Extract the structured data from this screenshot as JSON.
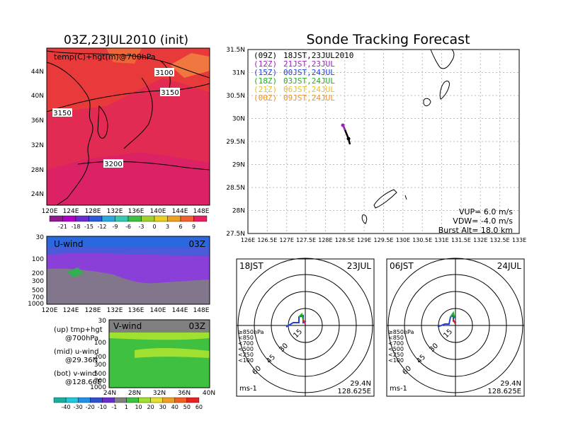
{
  "left_map": {
    "title": "03Z,23JUL2010 (init)",
    "label": "temp(C)+hgt(m)@700hPa",
    "contour_labels": [
      "3100",
      "3150",
      "3150",
      "3200"
    ],
    "lat_ticks": [
      "44N",
      "40N",
      "36N",
      "32N",
      "28N",
      "24N"
    ],
    "lon_ticks": [
      "120E",
      "124E",
      "128E",
      "132E",
      "136E",
      "140E",
      "144E",
      "148E"
    ],
    "colorbar": {
      "labels": [
        "-21",
        "-18",
        "-15",
        "-12",
        "-9",
        "-6",
        "-3",
        "0",
        "3",
        "6",
        "9"
      ],
      "colors": [
        "#8c1a8c",
        "#b000c8",
        "#6a2cd0",
        "#2a5ad8",
        "#2aa8e0",
        "#38c8b0",
        "#40c040",
        "#a0d030",
        "#e8d020",
        "#f0a020",
        "#f06030",
        "#e82060"
      ]
    }
  },
  "u_wind": {
    "label": "U-wind",
    "time": "03Z",
    "y_ticks": [
      "30",
      "100",
      "200",
      "300",
      "500",
      "700",
      "1000"
    ],
    "x_ticks": [
      "120E",
      "124E",
      "128E",
      "132E",
      "136E",
      "140E",
      "144E",
      "148E"
    ]
  },
  "v_wind": {
    "label": "V-wind",
    "time": "03Z",
    "y_ticks": [
      "30",
      "100",
      "200",
      "300",
      "500",
      "700",
      "1000"
    ],
    "x_ticks": [
      "24N",
      "28N",
      "32N",
      "36N",
      "40N"
    ]
  },
  "legend_notes": [
    "(up) tmp+hgt",
    "@700hPa",
    "(mid) u-wind",
    "@29.36N",
    "(bot) v-wind",
    "@128.66E"
  ],
  "wind_colorbar": {
    "labels": [
      "-40",
      "-30",
      "-20",
      "-10",
      "-1",
      "1",
      "10",
      "20",
      "30",
      "40",
      "50",
      "60"
    ],
    "colors": [
      "#1ab0a0",
      "#20c8e0",
      "#2090e8",
      "#3050d0",
      "#6a2cd0",
      "#808080",
      "#40c040",
      "#a0e030",
      "#e8e030",
      "#f0a020",
      "#f06020",
      "#e82020"
    ]
  },
  "tracking": {
    "title": "Sonde Tracking Forecast",
    "legend": [
      {
        "tag": "(09Z)",
        "text": "18JST,23JUL2010",
        "color": "#000000"
      },
      {
        "tag": "(12Z)",
        "text": "21JST,23JUL",
        "color": "#a020c0"
      },
      {
        "tag": "(15Z)",
        "text": "00JST,24JUL",
        "color": "#2040e0"
      },
      {
        "tag": "(18Z)",
        "text": "03JST,24JUL",
        "color": "#20b020"
      },
      {
        "tag": "(21Z)",
        "text": "06JST,24JUL",
        "color": "#e8c020"
      },
      {
        "tag": "(00Z)",
        "text": "09JST,24JUL",
        "color": "#f09020"
      }
    ],
    "lat_ticks": [
      "31.5N",
      "31N",
      "30.5N",
      "30N",
      "29.5N",
      "29N",
      "28.5N",
      "28N",
      "27.5N"
    ],
    "lon_ticks": [
      "126E",
      "126.5E",
      "127E",
      "127.5E",
      "128E",
      "128.5E",
      "129E",
      "129.5E",
      "130E",
      "130.5E",
      "131E",
      "131.5E",
      "132E",
      "132.5E",
      "133E"
    ],
    "params": [
      "VUP= 6.0 m/s",
      "VDW= -4.0 m/s",
      "Burst Alt= 18.0 km"
    ]
  },
  "hodo_left": {
    "time_label": "18JST",
    "date_label": "23JUL",
    "ring_labels": [
      "15",
      "30",
      "45",
      "60"
    ],
    "pressure_legend": [
      "≥850hPa",
      "<850",
      "<700",
      "<500",
      "<250",
      "<100"
    ],
    "pressure_colors": [
      "#e82020",
      "#f0a020",
      "#e8e030",
      "#20b020",
      "#20a0e0",
      "#2040e0"
    ],
    "unit": "ms-1",
    "lat": "29.4N",
    "lon": "128.625E"
  },
  "hodo_right": {
    "time_label": "06JST",
    "date_label": "24JUL",
    "ring_labels": [
      "15",
      "30",
      "45",
      "60"
    ],
    "pressure_legend": [
      "≥850hPa",
      "<850",
      "<700",
      "<500",
      "<250",
      "<100"
    ],
    "pressure_colors": [
      "#e82020",
      "#f0a020",
      "#e8e030",
      "#20b020",
      "#20a0e0",
      "#2040e0"
    ],
    "unit": "ms-1",
    "lat": "29.4N",
    "lon": "128.625E"
  }
}
